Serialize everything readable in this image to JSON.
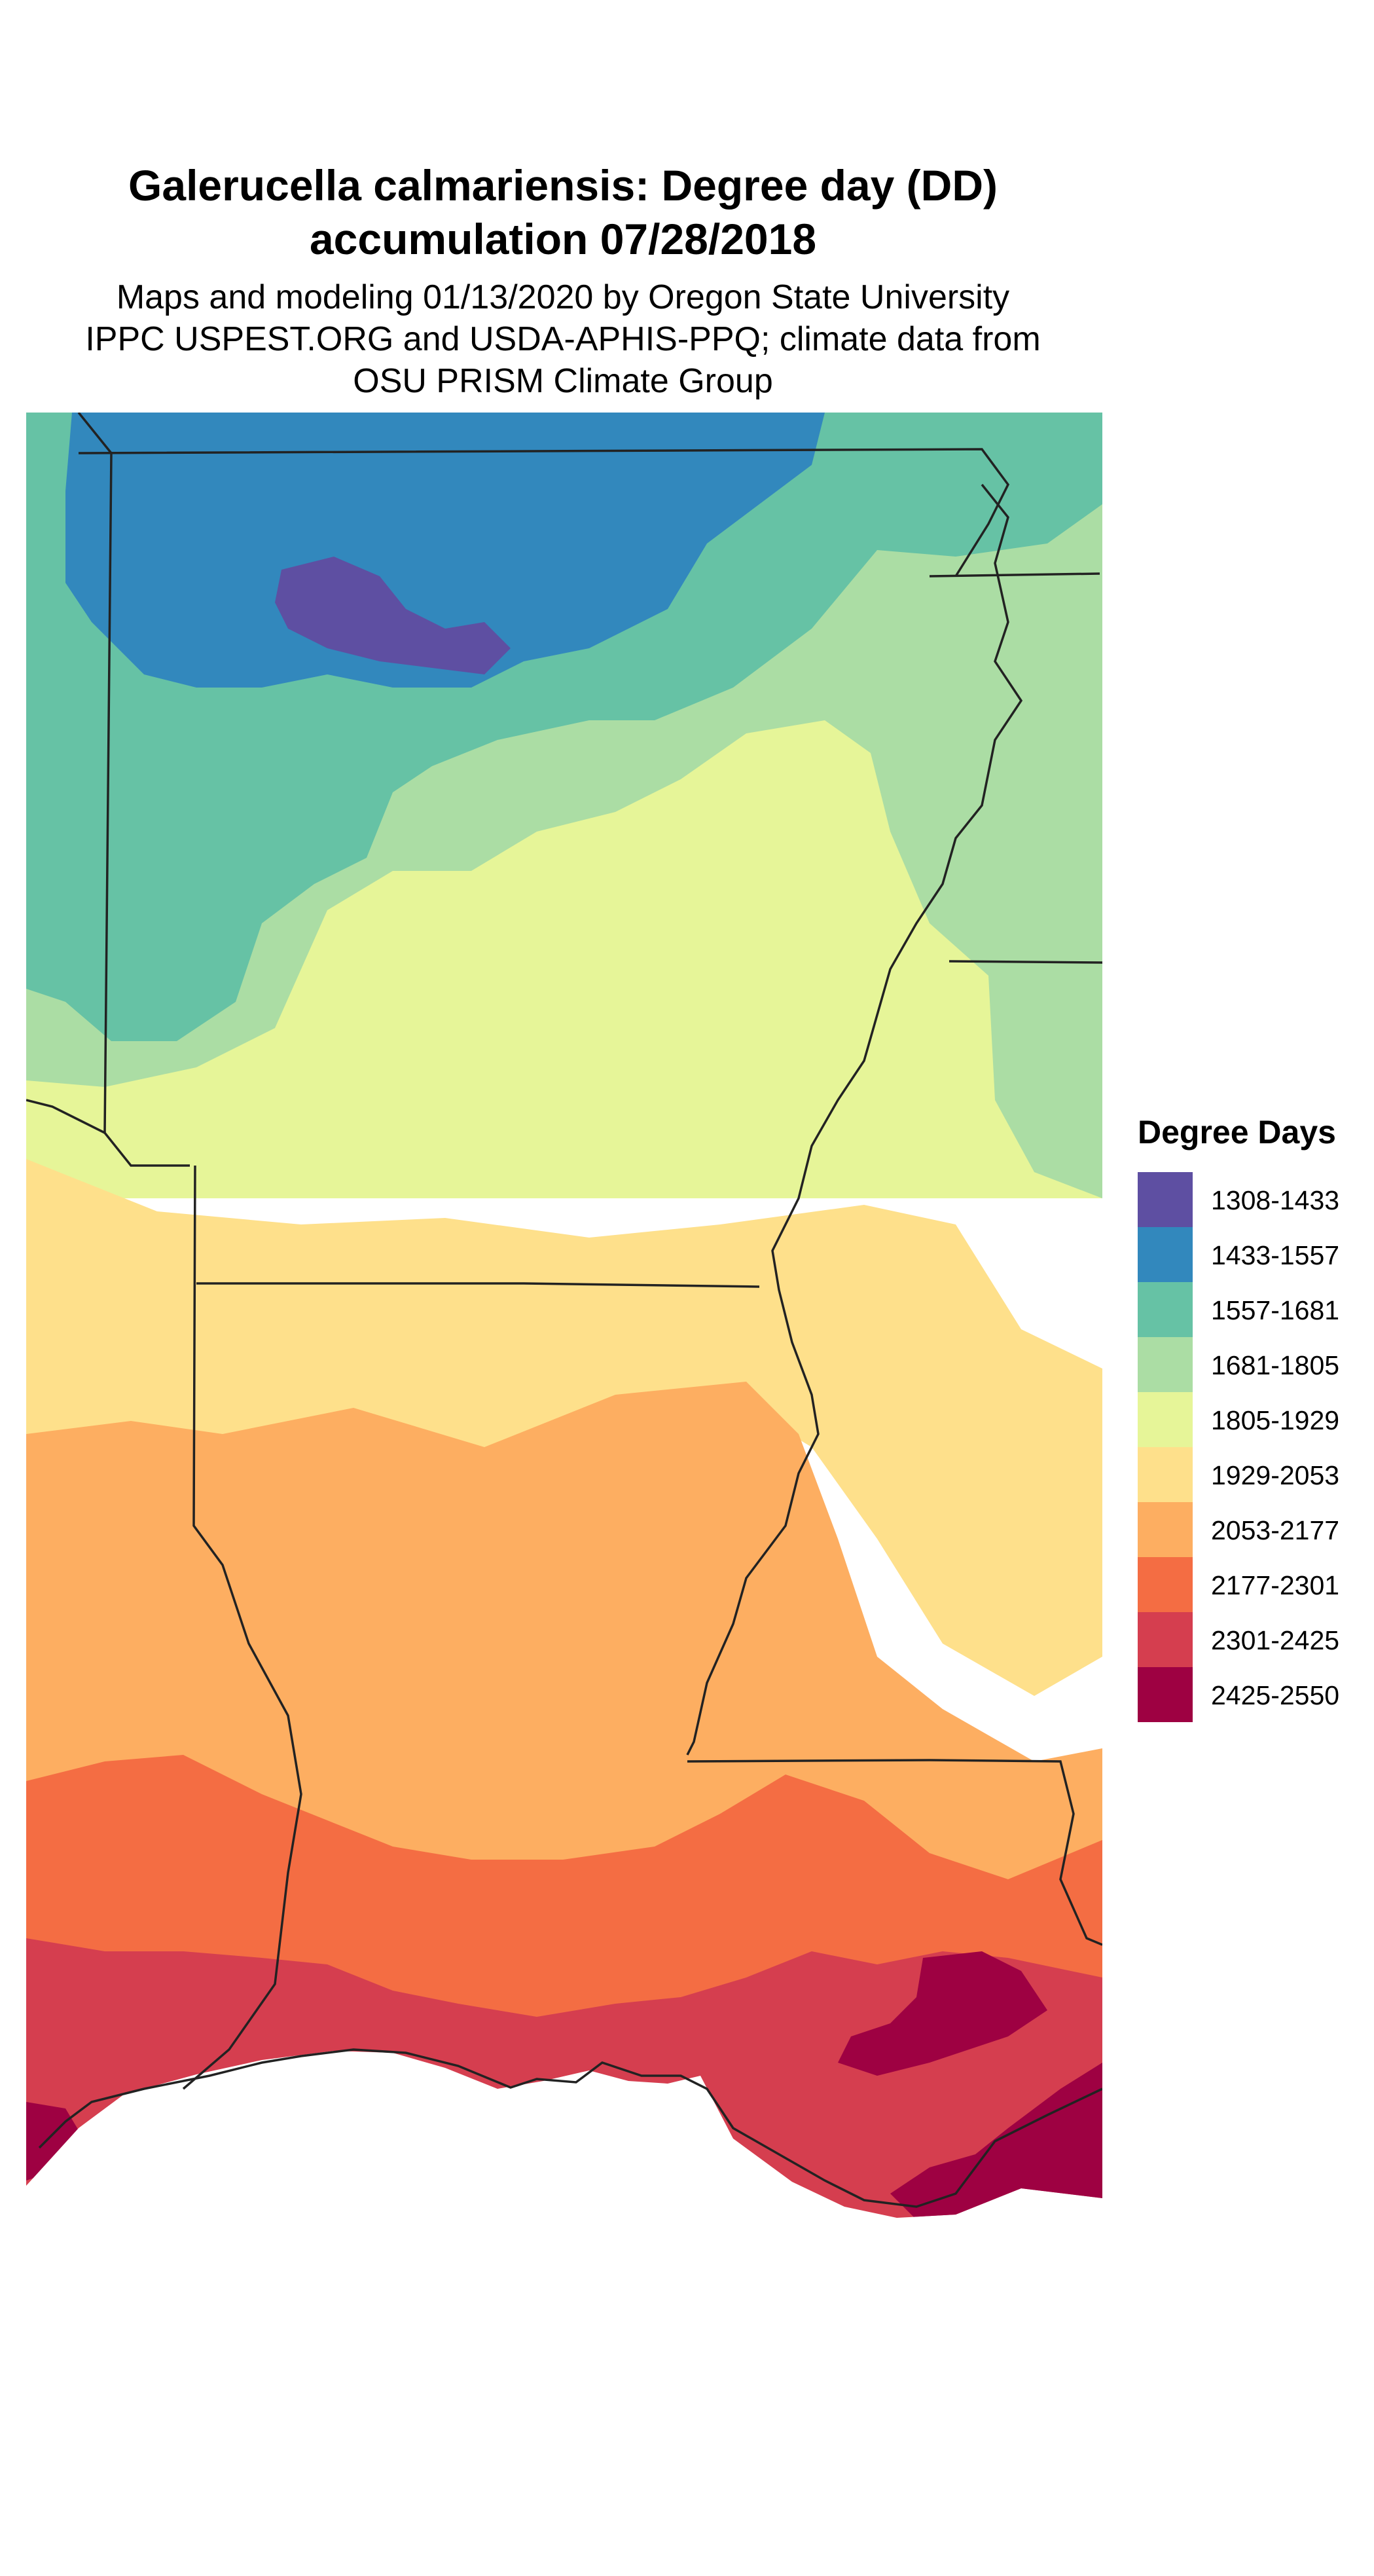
{
  "header": {
    "title_line1": "Galerucella calmariensis: Degree day (DD)",
    "title_line2": "accumulation 07/28/2018",
    "subtitle_line1": "Maps and modeling 01/13/2020 by Oregon State University",
    "subtitle_line2": "IPPC USPEST.ORG and USDA-APHIS-PPQ; climate data from",
    "subtitle_line3": "OSU PRISM Climate Group"
  },
  "legend": {
    "title": "Degree Days",
    "items": [
      {
        "label": "1308-1433",
        "color": "#5E4FA2"
      },
      {
        "label": "1433-1557",
        "color": "#3288BD"
      },
      {
        "label": "1557-1681",
        "color": "#66C2A5"
      },
      {
        "label": "1681-1805",
        "color": "#ABDDA4"
      },
      {
        "label": "1805-1929",
        "color": "#E6F598"
      },
      {
        "label": "1929-2053",
        "color": "#FEE08B"
      },
      {
        "label": "2053-2177",
        "color": "#FDAE61"
      },
      {
        "label": "2177-2301",
        "color": "#F46D43"
      },
      {
        "label": "2301-2425",
        "color": "#D53E4F"
      },
      {
        "label": "2425-2550",
        "color": "#9E0142"
      }
    ]
  }
}
